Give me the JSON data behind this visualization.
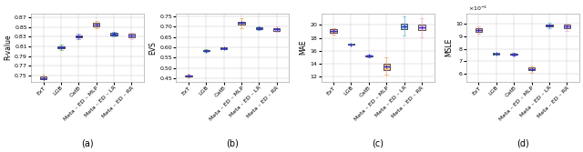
{
  "categories": [
    "ExT",
    "LGB",
    "CatB",
    "Meta – ED – MLP",
    "Meta – ED – LR",
    "Meta – ED – RR"
  ],
  "colors": [
    "#f4a582",
    "#78c679",
    "#8888cc",
    "#fdae6b",
    "#74c0e0",
    "#f7b6d2"
  ],
  "panel_labels": [
    "(a)",
    "(b)",
    "(c)",
    "(d)"
  ],
  "subplot_a": {
    "ylabel": "R-value",
    "ylim": [
      0.738,
      0.878
    ],
    "yticks": [
      0.75,
      0.77,
      0.79,
      0.81,
      0.83,
      0.85,
      0.87
    ],
    "boxes": [
      {
        "med": 0.745,
        "q1": 0.742,
        "q3": 0.749,
        "whislo": 0.738,
        "whishi": 0.752
      },
      {
        "med": 0.808,
        "q1": 0.806,
        "q3": 0.81,
        "whislo": 0.803,
        "whishi": 0.813
      },
      {
        "med": 0.831,
        "q1": 0.829,
        "q3": 0.833,
        "whislo": 0.826,
        "whishi": 0.836
      },
      {
        "med": 0.855,
        "q1": 0.851,
        "q3": 0.858,
        "whislo": 0.847,
        "whishi": 0.863
      },
      {
        "med": 0.835,
        "q1": 0.833,
        "q3": 0.838,
        "whislo": 0.83,
        "whishi": 0.841
      },
      {
        "med": 0.832,
        "q1": 0.829,
        "q3": 0.836,
        "whislo": 0.826,
        "whishi": 0.839
      }
    ]
  },
  "subplot_b": {
    "ylabel": "EVS",
    "ylim": [
      0.435,
      0.765
    ],
    "yticks": [
      0.45,
      0.5,
      0.55,
      0.6,
      0.65,
      0.7,
      0.75
    ],
    "boxes": [
      {
        "med": 0.462,
        "q1": 0.459,
        "q3": 0.466,
        "whislo": 0.455,
        "whishi": 0.47
      },
      {
        "med": 0.584,
        "q1": 0.581,
        "q3": 0.587,
        "whislo": 0.578,
        "whishi": 0.59
      },
      {
        "med": 0.596,
        "q1": 0.593,
        "q3": 0.599,
        "whislo": 0.59,
        "whishi": 0.602
      },
      {
        "med": 0.718,
        "q1": 0.71,
        "q3": 0.726,
        "whislo": 0.693,
        "whishi": 0.742
      },
      {
        "med": 0.695,
        "q1": 0.691,
        "q3": 0.699,
        "whislo": 0.686,
        "whishi": 0.704
      },
      {
        "med": 0.688,
        "q1": 0.682,
        "q3": 0.694,
        "whislo": 0.675,
        "whishi": 0.7
      }
    ]
  },
  "subplot_c": {
    "ylabel": "MAE",
    "ylim": [
      11.2,
      21.8
    ],
    "yticks": [
      12,
      14,
      16,
      18,
      20
    ],
    "boxes": [
      {
        "med": 19.1,
        "q1": 18.85,
        "q3": 19.3,
        "whislo": 18.5,
        "whishi": 19.55
      },
      {
        "med": 17.0,
        "q1": 16.96,
        "q3": 17.04,
        "whislo": 16.9,
        "whishi": 17.1
      },
      {
        "med": 15.2,
        "q1": 15.1,
        "q3": 15.3,
        "whislo": 15.0,
        "whishi": 15.4
      },
      {
        "med": 13.5,
        "q1": 13.0,
        "q3": 14.0,
        "whislo": 12.2,
        "whishi": 15.0
      },
      {
        "med": 19.8,
        "q1": 19.3,
        "q3": 20.2,
        "whislo": 18.3,
        "whishi": 21.3
      },
      {
        "med": 19.7,
        "q1": 19.15,
        "q3": 20.1,
        "whislo": 18.1,
        "whishi": 21.1
      }
    ]
  },
  "subplot_d": {
    "ylabel": "MSLE",
    "ylim": [
      0.0054,
      0.0108
    ],
    "yticks": [
      0.006,
      0.007,
      0.008,
      0.009,
      0.01
    ],
    "boxes": [
      {
        "med": 0.0095,
        "q1": 0.00935,
        "q3": 0.00965,
        "whislo": 0.0092,
        "whishi": 0.0098
      },
      {
        "med": 0.0076,
        "q1": 0.00755,
        "q3": 0.00765,
        "whislo": 0.0075,
        "whishi": 0.0077
      },
      {
        "med": 0.00755,
        "q1": 0.0075,
        "q3": 0.0076,
        "whislo": 0.00745,
        "whishi": 0.00765
      },
      {
        "med": 0.0064,
        "q1": 0.0063,
        "q3": 0.0065,
        "whislo": 0.0061,
        "whishi": 0.0067
      },
      {
        "med": 0.00985,
        "q1": 0.00975,
        "q3": 0.00995,
        "whislo": 0.0096,
        "whishi": 0.01005
      },
      {
        "med": 0.00975,
        "q1": 0.0096,
        "q3": 0.00988,
        "whislo": 0.0094,
        "whishi": 0.01002
      }
    ]
  }
}
